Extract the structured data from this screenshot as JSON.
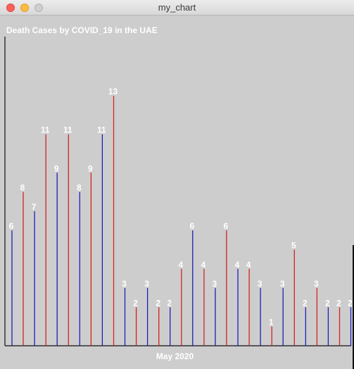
{
  "window": {
    "title": "my_chart"
  },
  "colors": {
    "background": "#cdcdcd",
    "odd_bar": "#1f1fb8",
    "even_bar": "#d42222",
    "label": "#ffffff",
    "axis": "#111111"
  },
  "chart_data": {
    "type": "bar",
    "title": "Death Cases by COVID_19 in the UAE",
    "xlabel": "May 2020",
    "ylabel": "",
    "ylim": [
      0,
      13
    ],
    "grid": false,
    "legend": "none",
    "values": [
      6,
      8,
      7,
      11,
      9,
      11,
      8,
      9,
      11,
      13,
      3,
      2,
      3,
      2,
      2,
      4,
      6,
      4,
      3,
      6,
      4,
      4,
      3,
      1,
      3,
      5,
      2,
      3,
      2,
      2,
      2
    ]
  }
}
